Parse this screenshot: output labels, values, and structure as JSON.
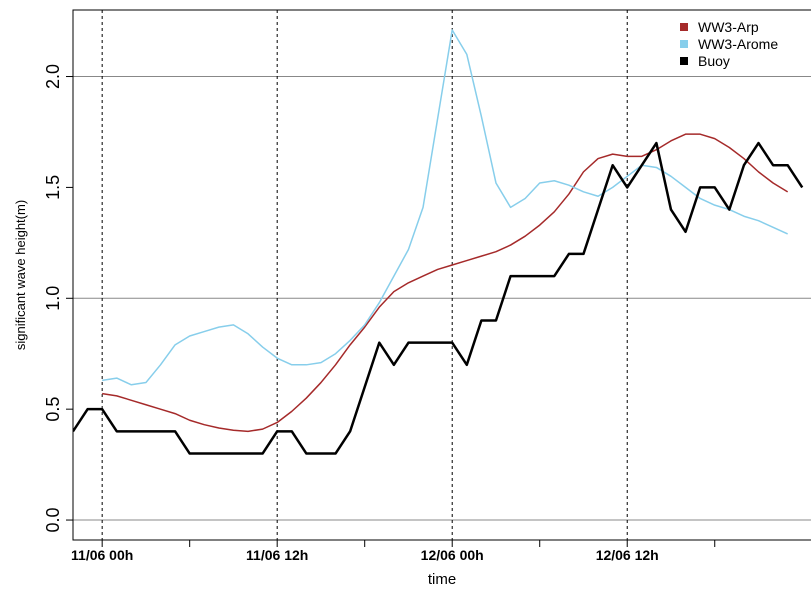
{
  "chart_data": {
    "type": "line",
    "xlabel": "time",
    "ylabel": "significant wave height(m)",
    "xlim": [
      -2,
      48.6
    ],
    "ylim": [
      -0.09,
      2.3
    ],
    "xticks": [
      {
        "value": 0,
        "label": "11/06 00h"
      },
      {
        "value": 12,
        "label": "11/06 12h"
      },
      {
        "value": 24,
        "label": "12/06 00h"
      },
      {
        "value": 36,
        "label": "12/06 12h"
      }
    ],
    "minor_xticks": [
      6,
      18,
      30,
      42
    ],
    "yticks": [
      {
        "value": 0,
        "label": "0.0"
      },
      0.5,
      {
        "value": 1,
        "label": "1.0"
      },
      1.5,
      {
        "value": 2,
        "label": "2.0"
      }
    ],
    "hgrid": [
      0,
      1,
      2
    ],
    "legend": "top-right",
    "series": [
      {
        "name": "WW3-Arp",
        "color": "#a52a2a",
        "width": 1.5,
        "x": [
          0,
          1,
          2,
          3,
          4,
          5,
          6,
          7,
          8,
          9,
          10,
          11,
          12,
          13,
          14,
          15,
          16,
          17,
          18,
          19,
          20,
          21,
          22,
          23,
          24,
          25,
          26,
          27,
          28,
          29,
          30,
          31,
          32,
          33,
          34,
          35,
          36,
          37,
          38,
          39,
          40,
          41,
          42,
          43,
          44,
          45,
          46,
          47
        ],
        "values": [
          0.57,
          0.56,
          0.54,
          0.52,
          0.5,
          0.48,
          0.45,
          0.43,
          0.415,
          0.405,
          0.4,
          0.41,
          0.44,
          0.49,
          0.55,
          0.62,
          0.7,
          0.79,
          0.87,
          0.96,
          1.03,
          1.07,
          1.1,
          1.13,
          1.15,
          1.17,
          1.19,
          1.21,
          1.24,
          1.28,
          1.33,
          1.39,
          1.47,
          1.57,
          1.63,
          1.65,
          1.64,
          1.64,
          1.67,
          1.71,
          1.74,
          1.74,
          1.72,
          1.68,
          1.63,
          1.57,
          1.52,
          1.48
        ]
      },
      {
        "name": "WW3-Arome",
        "color": "#87ceeb",
        "width": 1.5,
        "x": [
          0,
          1,
          2,
          3,
          4,
          5,
          6,
          7,
          8,
          9,
          10,
          11,
          12,
          13,
          14,
          15,
          16,
          17,
          18,
          19,
          20,
          21,
          22,
          23,
          24,
          25,
          26,
          27,
          28,
          29,
          30,
          31,
          32,
          33,
          34,
          35,
          36,
          37,
          38,
          39,
          40,
          41,
          42,
          43,
          44,
          45,
          46,
          47
        ],
        "values": [
          0.63,
          0.64,
          0.61,
          0.62,
          0.7,
          0.79,
          0.83,
          0.85,
          0.87,
          0.88,
          0.84,
          0.78,
          0.73,
          0.7,
          0.7,
          0.71,
          0.75,
          0.81,
          0.88,
          0.98,
          1.1,
          1.22,
          1.41,
          1.81,
          2.21,
          2.1,
          1.82,
          1.52,
          1.41,
          1.45,
          1.52,
          1.53,
          1.51,
          1.48,
          1.46,
          1.5,
          1.55,
          1.6,
          1.59,
          1.55,
          1.5,
          1.45,
          1.42,
          1.4,
          1.37,
          1.35,
          1.32,
          1.29
        ]
      },
      {
        "name": "Buoy",
        "color": "#000000",
        "width": 2.5,
        "x": [
          -2,
          -1,
          0,
          1,
          2,
          3,
          4,
          5,
          6,
          7,
          8,
          9,
          10,
          11,
          12,
          13,
          14,
          15,
          16,
          17,
          18,
          19,
          20,
          21,
          22,
          23,
          24,
          25,
          26,
          27,
          28,
          29,
          30,
          31,
          32,
          33,
          34,
          35,
          36,
          37,
          38,
          39,
          40,
          41,
          42,
          43,
          44,
          45,
          46,
          47,
          48
        ],
        "values": [
          0.4,
          0.5,
          0.5,
          0.4,
          0.4,
          0.4,
          0.4,
          0.4,
          0.3,
          0.3,
          0.3,
          0.3,
          0.3,
          0.3,
          0.4,
          0.4,
          0.3,
          0.3,
          0.3,
          0.4,
          0.6,
          0.8,
          0.7,
          0.8,
          0.8,
          0.8,
          0.8,
          0.7,
          0.9,
          0.9,
          1.1,
          1.1,
          1.1,
          1.1,
          1.2,
          1.2,
          1.4,
          1.6,
          1.5,
          1.6,
          1.7,
          1.4,
          1.3,
          1.5,
          1.5,
          1.4,
          1.6,
          1.7,
          1.6,
          1.6,
          1.5
        ]
      }
    ]
  }
}
